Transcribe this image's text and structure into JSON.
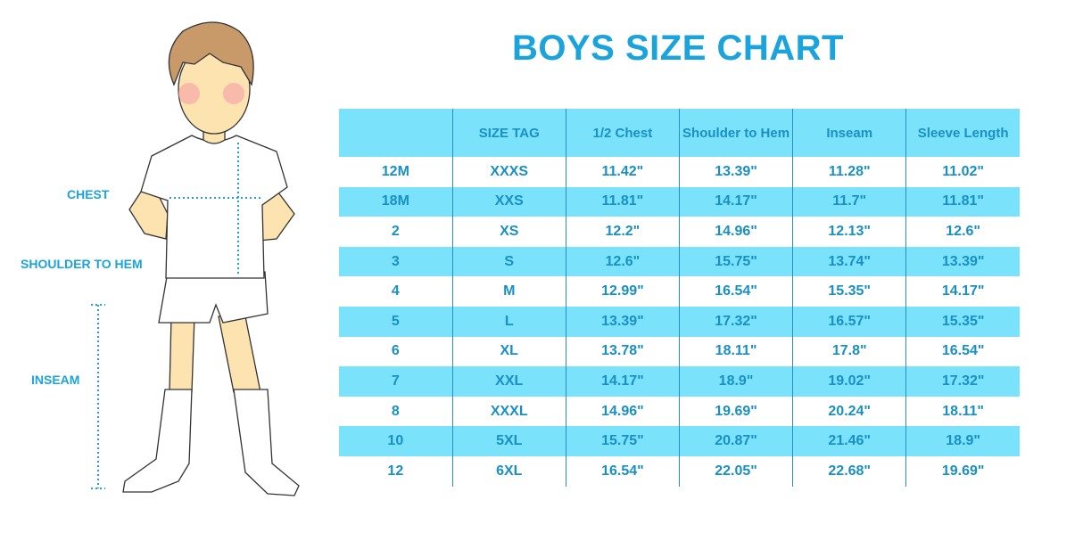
{
  "title": "BOYS SIZE CHART",
  "labels": {
    "chest": "CHEST",
    "shoulder_to_hem": "SHOULDER TO HEM",
    "inseam": "INSEAM"
  },
  "colors": {
    "accent": "#1ba3dc",
    "header_bg": "#7ae3fb",
    "text": "#1a8fc4"
  },
  "table": {
    "headers": [
      "",
      "SIZE TAG",
      "1/2 Chest",
      "Shoulder to Hem",
      "Inseam",
      "Sleeve Length"
    ],
    "rows": [
      [
        "12M",
        "XXXS",
        "11.42\"",
        "13.39\"",
        "11.28\"",
        "11.02\""
      ],
      [
        "18M",
        "XXS",
        "11.81\"",
        "14.17\"",
        "11.7\"",
        "11.81\""
      ],
      [
        "2",
        "XS",
        "12.2\"",
        "14.96\"",
        "12.13\"",
        "12.6\""
      ],
      [
        "3",
        "S",
        "12.6\"",
        "15.75\"",
        "13.74\"",
        "13.39\""
      ],
      [
        "4",
        "M",
        "12.99\"",
        "16.54\"",
        "15.35\"",
        "14.17\""
      ],
      [
        "5",
        "L",
        "13.39\"",
        "17.32\"",
        "16.57\"",
        "15.35\""
      ],
      [
        "6",
        "XL",
        "13.78\"",
        "18.11\"",
        "17.8\"",
        "16.54\""
      ],
      [
        "7",
        "XXL",
        "14.17\"",
        "18.9\"",
        "19.02\"",
        "17.32\""
      ],
      [
        "8",
        "XXXL",
        "14.96\"",
        "19.69\"",
        "20.24\"",
        "18.11\""
      ],
      [
        "10",
        "5XL",
        "15.75\"",
        "20.87\"",
        "21.46\"",
        "18.9\""
      ],
      [
        "12",
        "6XL",
        "16.54\"",
        "22.05\"",
        "22.68\"",
        "19.69\""
      ]
    ]
  }
}
